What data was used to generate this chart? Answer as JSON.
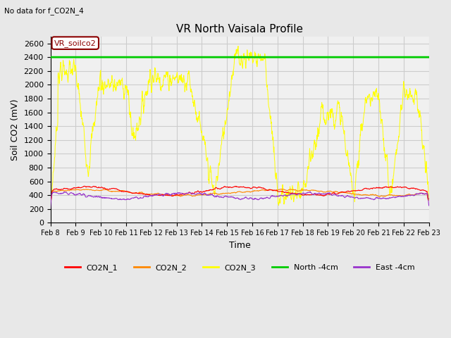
{
  "title": "VR North Vaisala Profile",
  "subtitle": "No data for f_CO2N_4",
  "xlabel": "Time",
  "ylabel": "Soil CO2 (mV)",
  "ylim": [
    0,
    2700
  ],
  "yticks": [
    0,
    200,
    400,
    600,
    800,
    1000,
    1200,
    1400,
    1600,
    1800,
    2000,
    2200,
    2400,
    2600
  ],
  "n_days": 15,
  "north_4cm_value": 2400,
  "vr_soilco2_label": "VR_soilco2",
  "legend_entries": [
    "CO2N_1",
    "CO2N_2",
    "CO2N_3",
    "North -4cm",
    "East -4cm"
  ],
  "legend_colors": [
    "#ff0000",
    "#ff8800",
    "#ffff00",
    "#00cc00",
    "#9933cc"
  ],
  "bg_color": "#e8e8e8",
  "plot_bg_color": "#f0f0f0",
  "grid_color": "#cccccc",
  "co2n1_color": "#ff0000",
  "co2n2_color": "#ff8800",
  "co2n3_color": "#ffff00",
  "north_color": "#00cc00",
  "east_color": "#9933cc",
  "xtick_labels": [
    "Feb 8",
    "Feb 9",
    "Feb 10",
    "Feb 11",
    "Feb 12",
    "Feb 13",
    "Feb 14",
    "Feb 15",
    "Feb 16",
    "Feb 17",
    "Feb 18",
    "Feb 19",
    "Feb 20",
    "Feb 21",
    "Feb 22",
    "Feb 23"
  ]
}
